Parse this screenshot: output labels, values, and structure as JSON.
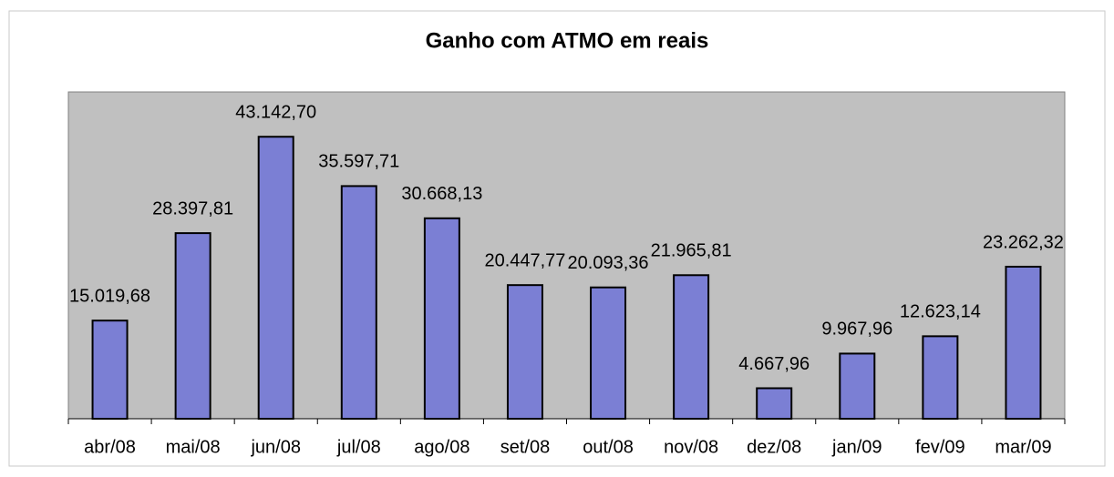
{
  "chart_data": {
    "type": "bar",
    "title": "Ganho com ATMO em reais",
    "categories": [
      "abr/08",
      "mai/08",
      "jun/08",
      "jul/08",
      "ago/08",
      "set/08",
      "out/08",
      "nov/08",
      "dez/08",
      "jan/09",
      "fev/09",
      "mar/09"
    ],
    "values": [
      15019.68,
      28397.81,
      43142.7,
      35597.71,
      30668.13,
      20447.77,
      20093.36,
      21965.81,
      4667.96,
      9967.96,
      12623.14,
      23262.32
    ],
    "value_labels": [
      "15.019,68",
      "28.397,81",
      "43.142,70",
      "35.597,71",
      "30.668,13",
      "20.447,77",
      "20.093,36",
      "21.965,81",
      "4.667,96",
      "9.967,96",
      "12.623,14",
      "23.262,32"
    ],
    "color": "#7b7fd4",
    "ylim": [
      0,
      50000
    ]
  }
}
